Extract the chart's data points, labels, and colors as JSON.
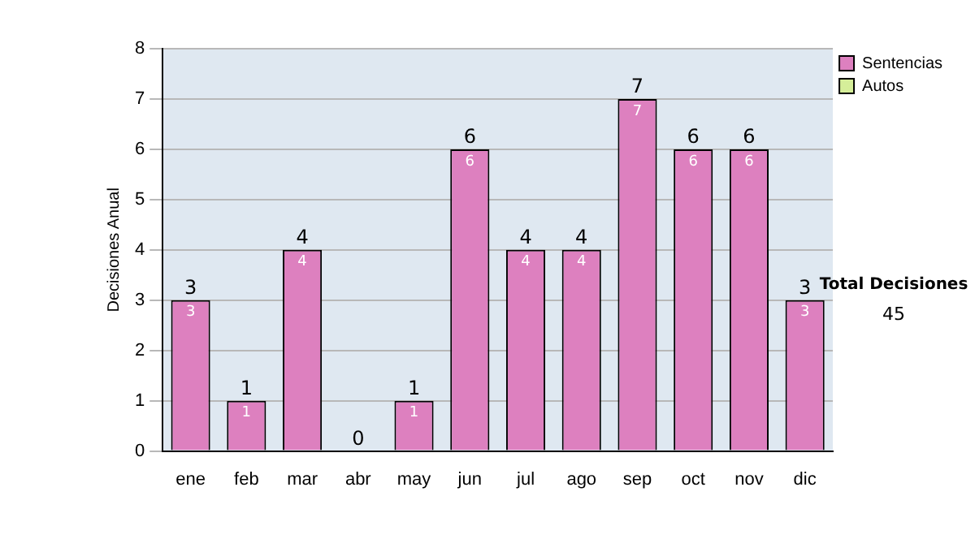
{
  "chart_data": {
    "type": "bar",
    "stacked": true,
    "ylabel": "Decisiones Anual",
    "categories": [
      "ene",
      "feb",
      "mar",
      "abr",
      "may",
      "jun",
      "jul",
      "ago",
      "sep",
      "oct",
      "nov",
      "dic"
    ],
    "series": [
      {
        "name": "Sentencias",
        "color": "#dd80bf",
        "values": [
          3,
          1,
          4,
          0,
          1,
          6,
          4,
          4,
          7,
          6,
          6,
          3
        ],
        "value_labels": [
          "3",
          "1",
          "4",
          null,
          "1",
          "6",
          "4",
          "4",
          "7",
          "6",
          "6",
          "3"
        ]
      },
      {
        "name": "Autos",
        "color": "#d5ee99",
        "values": [
          0,
          0,
          0,
          0,
          0,
          0,
          0,
          0,
          0,
          0,
          0,
          0
        ]
      }
    ],
    "totals": [
      "3",
      "1",
      "4",
      "0",
      "1",
      "6",
      "4",
      "4",
      "7",
      "6",
      "6",
      "3"
    ],
    "ylim": [
      0,
      8
    ],
    "yticks": [
      0,
      1,
      2,
      3,
      4,
      5,
      6,
      7,
      8
    ],
    "grid": "y",
    "legend": "right",
    "annotations": [
      "Total Decisiones",
      "45"
    ]
  }
}
